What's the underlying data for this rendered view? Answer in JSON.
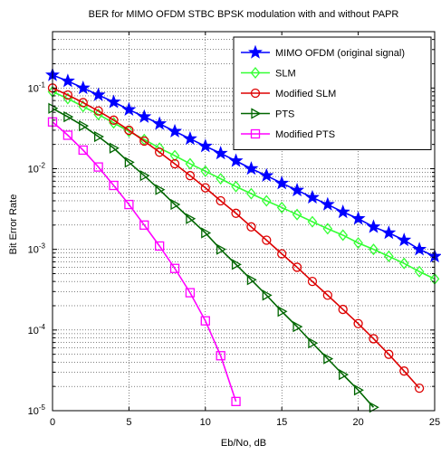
{
  "chart_data": {
    "type": "line",
    "title": "BER for MIMO OFDM STBC BPSK modulation with and without PAPR",
    "xlabel": "Eb/No, dB",
    "ylabel": "Bit Error Rate",
    "xlim": [
      0,
      25
    ],
    "ylim": [
      1e-05,
      0.5
    ],
    "yscale": "log",
    "grid": true,
    "legend_position": "top-right",
    "x_ticks": [
      "0",
      "5",
      "10",
      "15",
      "20",
      "25"
    ],
    "y_ticks": [
      {
        "base": "10",
        "exp": "-1",
        "value": 0.1
      },
      {
        "base": "10",
        "exp": "-2",
        "value": 0.01
      },
      {
        "base": "10",
        "exp": "-3",
        "value": 0.001
      },
      {
        "base": "10",
        "exp": "-4",
        "value": 0.0001
      },
      {
        "base": "10",
        "exp": "-5",
        "value": 1e-05
      }
    ],
    "series": [
      {
        "name": "MIMO OFDM (original signal)",
        "color": "#0000ff",
        "marker": "star",
        "x": [
          0,
          1,
          2,
          3,
          4,
          5,
          6,
          7,
          8,
          9,
          10,
          11,
          12,
          13,
          14,
          15,
          16,
          17,
          18,
          19,
          20,
          21,
          22,
          23,
          24,
          25
        ],
        "y": [
          0.145,
          0.122,
          0.1,
          0.082,
          0.067,
          0.054,
          0.044,
          0.036,
          0.029,
          0.0235,
          0.019,
          0.0155,
          0.0125,
          0.01,
          0.0082,
          0.0066,
          0.0054,
          0.0044,
          0.0036,
          0.0029,
          0.0024,
          0.0019,
          0.0016,
          0.0013,
          0.001,
          0.00082
        ]
      },
      {
        "name": "SLM",
        "color": "#33ff33",
        "marker": "diamond",
        "x": [
          0,
          1,
          2,
          3,
          4,
          5,
          6,
          7,
          8,
          9,
          10,
          11,
          12,
          13,
          14,
          15,
          16,
          17,
          18,
          19,
          20,
          21,
          22,
          23,
          24,
          25
        ],
        "y": [
          0.09,
          0.074,
          0.059,
          0.047,
          0.037,
          0.029,
          0.023,
          0.018,
          0.0145,
          0.0115,
          0.0093,
          0.0075,
          0.006,
          0.0049,
          0.004,
          0.0033,
          0.0027,
          0.0022,
          0.0018,
          0.0015,
          0.0012,
          0.001,
          0.00082,
          0.00067,
          0.00053,
          0.00043
        ]
      },
      {
        "name": "Modified SLM",
        "color": "#dd0000",
        "marker": "circle",
        "x": [
          0,
          1,
          2,
          3,
          4,
          5,
          6,
          7,
          8,
          9,
          10,
          11,
          12,
          13,
          14,
          15,
          16,
          17,
          18,
          19,
          20,
          21,
          22,
          23,
          24
        ],
        "y": [
          0.1,
          0.082,
          0.066,
          0.052,
          0.04,
          0.03,
          0.022,
          0.016,
          0.0115,
          0.0082,
          0.0058,
          0.004,
          0.0028,
          0.0019,
          0.0013,
          0.00088,
          0.0006,
          0.0004,
          0.00027,
          0.00018,
          0.00012,
          7.8e-05,
          5e-05,
          3.1e-05,
          1.9e-05
        ]
      },
      {
        "name": "PTS",
        "color": "#006600",
        "marker": "triangle-right",
        "x": [
          0,
          1,
          2,
          3,
          4,
          5,
          6,
          7,
          8,
          9,
          10,
          11,
          12,
          13,
          14,
          15,
          16,
          17,
          18,
          19,
          20,
          21
        ],
        "y": [
          0.056,
          0.044,
          0.034,
          0.025,
          0.018,
          0.012,
          0.0082,
          0.0055,
          0.0036,
          0.0024,
          0.0016,
          0.001,
          0.00065,
          0.00042,
          0.00027,
          0.00017,
          0.00011,
          6.9e-05,
          4.4e-05,
          2.8e-05,
          1.8e-05,
          1.1e-05
        ]
      },
      {
        "name": "Modified PTS",
        "color": "#ff00ff",
        "marker": "square",
        "x": [
          0,
          1,
          2,
          3,
          4,
          5,
          6,
          7,
          8,
          9,
          10,
          11,
          12
        ],
        "y": [
          0.038,
          0.026,
          0.017,
          0.0105,
          0.0062,
          0.0036,
          0.002,
          0.0011,
          0.00058,
          0.00029,
          0.00013,
          4.8e-05,
          1.3e-05
        ]
      }
    ]
  }
}
